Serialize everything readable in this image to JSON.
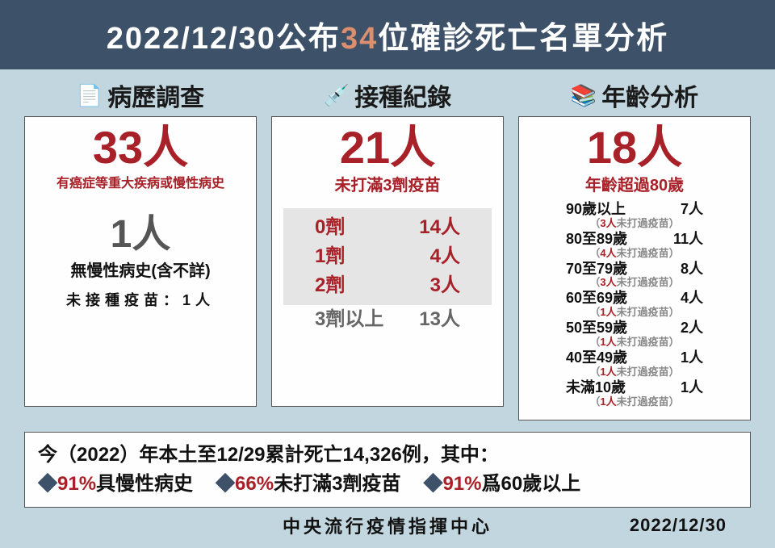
{
  "header": {
    "pre": "2022/12/30公布",
    "emph": "34",
    "post": "位確診死亡名單分析"
  },
  "col1": {
    "icon": "📄",
    "title": "病歷調查",
    "big": "33人",
    "big_sub": "有癌症等重大疾病或慢性病史",
    "mid": "1人",
    "mid_sub1": "無慢性病史(含不詳)",
    "mid_sub2": "未接種疫苗：1人"
  },
  "col2": {
    "icon": "💉",
    "title": "接種紀錄",
    "big": "21人",
    "big_sub": "未打滿3劑疫苗",
    "rows": [
      {
        "lbl": "0劑",
        "val": "14人",
        "hl": true
      },
      {
        "lbl": "1劑",
        "val": "4人",
        "hl": true
      },
      {
        "lbl": "2劑",
        "val": "3人",
        "hl": true
      },
      {
        "lbl": "3劑以上",
        "val": "13人",
        "hl": false
      }
    ]
  },
  "col3": {
    "icon": "📚",
    "title": "年齡分析",
    "big": "18人",
    "big_sub": "年齡超過80歲",
    "rows": [
      {
        "lbl": "90歲以上",
        "val": "7人",
        "note_n": "3人",
        "note_t": "未打過疫苗"
      },
      {
        "lbl": "80至89歲",
        "val": "11人",
        "note_n": "4人",
        "note_t": "未打過疫苗"
      },
      {
        "lbl": "70至79歲",
        "val": "8人",
        "note_n": "3人",
        "note_t": "未打過疫苗"
      },
      {
        "lbl": "60至69歲",
        "val": "4人",
        "note_n": "1人",
        "note_t": "未打過疫苗"
      },
      {
        "lbl": "50至59歲",
        "val": "2人",
        "note_n": "1人",
        "note_t": "未打過疫苗"
      },
      {
        "lbl": "40至49歲",
        "val": "1人",
        "note_n": "1人",
        "note_t": "未打過疫苗"
      },
      {
        "lbl": "未滿10歲",
        "val": "1人",
        "note_n": "1人",
        "note_t": "未打過疫苗"
      }
    ]
  },
  "summary": {
    "line1": "今（2022）年本土至12/29累計死亡14,326例，其中：",
    "items": [
      {
        "pct": "91%",
        "txt": "具慢性病史"
      },
      {
        "pct": "66%",
        "txt": "未打滿3劑疫苗"
      },
      {
        "pct": "91%",
        "txt": "爲60歲以上"
      }
    ]
  },
  "footer": {
    "org": "中央流行疫情指揮中心",
    "date": "2022/12/30"
  },
  "colors": {
    "page_bg": "#c2d6df",
    "header_bg": "#3d5168",
    "accent_red": "#a82028",
    "accent_orange": "#dc8f6e",
    "box_bg": "#fefefe",
    "dose_bg": "#e5e5e5"
  }
}
